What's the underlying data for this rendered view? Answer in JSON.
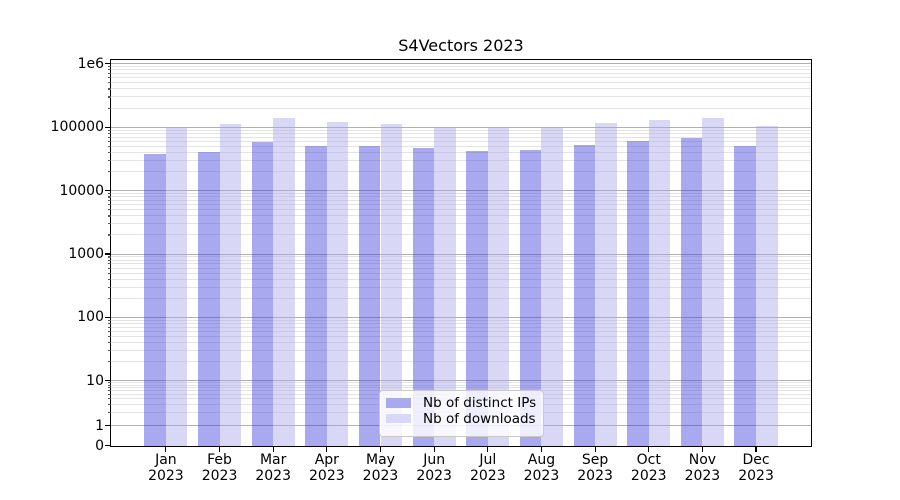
{
  "title": "S4Vectors 2023",
  "y_axis": {
    "tick_labels": [
      "1e6",
      "100000",
      "10000",
      "1000",
      "100",
      "10",
      "1",
      "0"
    ]
  },
  "x_axis": {
    "year": "2023",
    "months": [
      "Jan",
      "Feb",
      "Mar",
      "Apr",
      "May",
      "Jun",
      "Jul",
      "Aug",
      "Sep",
      "Oct",
      "Nov",
      "Dec"
    ]
  },
  "legend": [
    {
      "label": "Nb of distinct IPs",
      "color": "#a9a9ef"
    },
    {
      "label": "Nb of downloads",
      "color": "#d8d8f6"
    }
  ],
  "colors": {
    "bar_dark_rgba": "rgba(64,64,220,0.45)",
    "bar_light_rgba": "rgba(168,168,235,0.45)",
    "grid_major": "#b0b0b0",
    "grid_minor": "#e4e4e4"
  },
  "chart_data": {
    "type": "bar",
    "title": "S4Vectors 2023",
    "categories": [
      "Jan 2023",
      "Feb 2023",
      "Mar 2023",
      "Apr 2023",
      "May 2023",
      "Jun 2023",
      "Jul 2023",
      "Aug 2023",
      "Sep 2023",
      "Oct 2023",
      "Nov 2023",
      "Dec 2023"
    ],
    "series": [
      {
        "name": "Nb of distinct IPs",
        "color": "#a9a9ef",
        "values": [
          38000,
          41000,
          59000,
          51000,
          50000,
          47000,
          43000,
          44000,
          53000,
          61000,
          68000,
          51000
        ]
      },
      {
        "name": "Nb of downloads",
        "color": "#d8d8f6",
        "values": [
          102000,
          111000,
          138000,
          122000,
          113000,
          97000,
          96000,
          99000,
          117000,
          132000,
          142000,
          104000
        ]
      }
    ],
    "yscale": "symlog",
    "ylim": [
      0,
      1000000
    ],
    "y_ticks": [
      0,
      1,
      10,
      100,
      1000,
      10000,
      100000,
      1000000
    ],
    "xlabel": "",
    "ylabel": "",
    "grid": true,
    "legend_position": "lower center"
  }
}
